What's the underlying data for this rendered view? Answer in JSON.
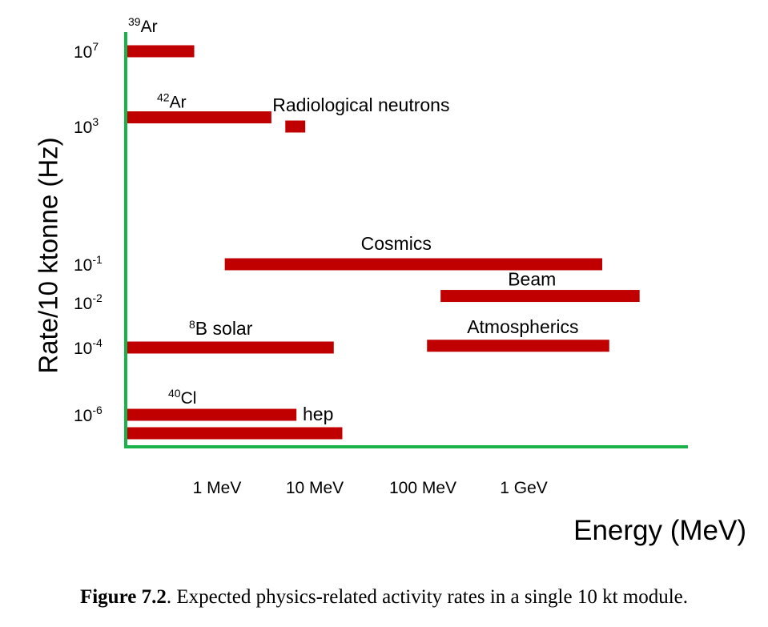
{
  "chart_data": {
    "type": "range-bar",
    "xlabel": "Energy (MeV)",
    "ylabel": "Rate/10 ktonne (Hz)",
    "x_scale": "log",
    "y_scale": "log",
    "y_ticks": [
      {
        "base": "10",
        "exp": "7",
        "value": 10000000
      },
      {
        "base": "10",
        "exp": "3",
        "value": 1000
      },
      {
        "base": "10",
        "exp": "-1",
        "value": 0.1
      },
      {
        "base": "10",
        "exp": "-2",
        "value": 0.01
      },
      {
        "base": "10",
        "exp": "-4",
        "value": 0.0001
      },
      {
        "base": "10",
        "exp": "-6",
        "value": 1e-06
      }
    ],
    "x_ticks": [
      {
        "label": "1 MeV",
        "value": 1
      },
      {
        "label": "10 MeV",
        "value": 10
      },
      {
        "label": "100 MeV",
        "value": 100
      },
      {
        "label": "1 GeV",
        "value": 1000
      }
    ],
    "bar_color": "#c00000",
    "axis_color": "#1ab34a",
    "series": [
      {
        "sup": "39",
        "name": "Ar",
        "x_min": 0.1,
        "x_max": 0.56,
        "rate": 10000000
      },
      {
        "sup": "42",
        "name": "Ar",
        "x_min": 0.1,
        "x_max": 3.6,
        "rate": 3000
      },
      {
        "sup": "",
        "name": "Radiological neutrons",
        "x_min": 5,
        "x_max": 8,
        "rate": 1000
      },
      {
        "sup": "",
        "name": "Cosmics",
        "x_min": 1.2,
        "x_max": 10000,
        "rate": 0.1
      },
      {
        "sup": "",
        "name": "Beam",
        "x_min": 150,
        "x_max": 60000,
        "rate": 0.015
      },
      {
        "sup": "8",
        "name": "B solar",
        "x_min": 0.1,
        "x_max": 15,
        "rate": 0.0001
      },
      {
        "sup": "",
        "name": "Atmospherics",
        "x_min": 110,
        "x_max": 14000,
        "rate": 0.00012
      },
      {
        "sup": "40",
        "name": "Cl",
        "x_min": 0.1,
        "x_max": 6.5,
        "rate": 1e-06
      },
      {
        "sup": "",
        "name": "hep",
        "x_min": 0.1,
        "x_max": 18,
        "rate": 3e-07
      }
    ]
  },
  "caption": {
    "label": "Figure 7.2",
    "text": ". Expected physics-related activity rates in a single 10 kt module."
  }
}
